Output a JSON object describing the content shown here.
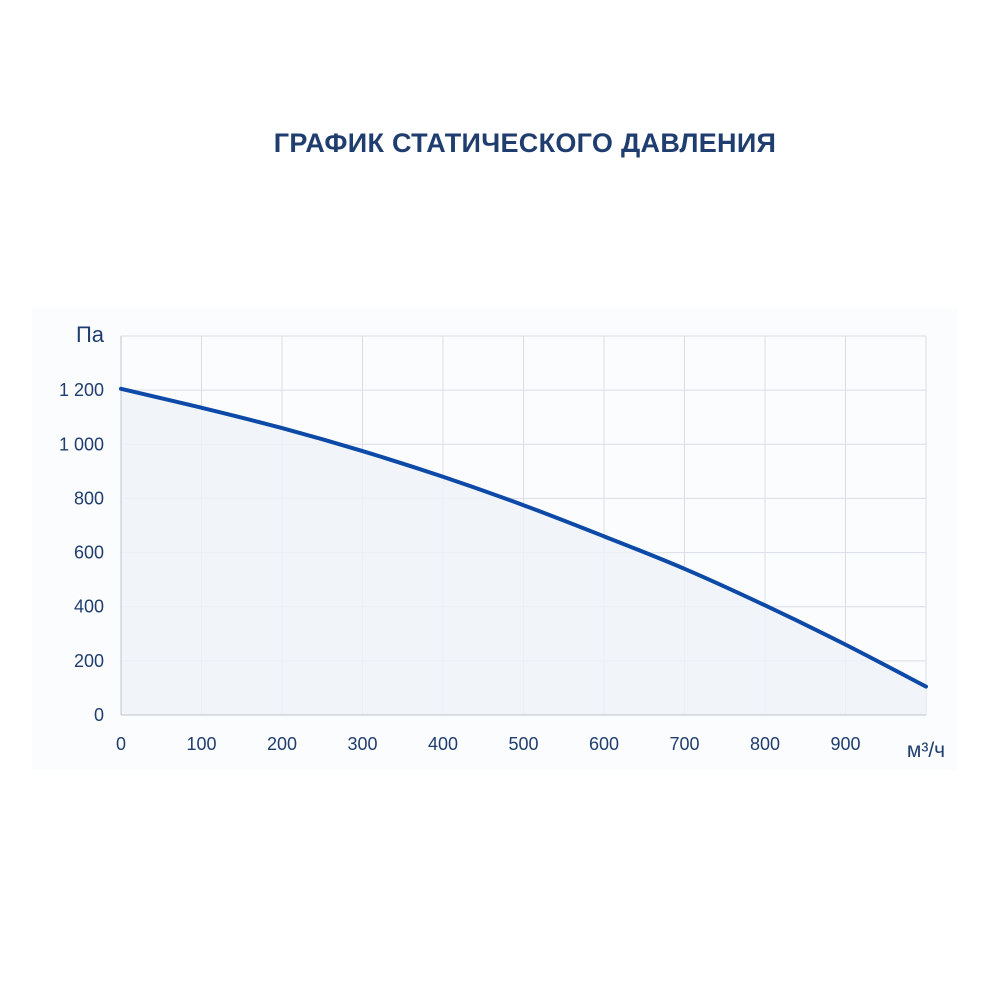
{
  "chart_data": {
    "type": "area",
    "title": "ГРАФИК СТАТИЧЕСКОГО ДАВЛЕНИЯ",
    "xlabel": "м³/ч",
    "ylabel": "Па",
    "xlim": [
      0,
      1000
    ],
    "ylim": [
      0,
      1400
    ],
    "x_ticks": [
      0,
      100,
      200,
      300,
      400,
      500,
      600,
      700,
      800,
      900
    ],
    "x_tick_labels": [
      "0",
      "100",
      "200",
      "300",
      "400",
      "500",
      "600",
      "700",
      "800",
      "900"
    ],
    "y_ticks": [
      0,
      200,
      400,
      600,
      800,
      1000,
      1200
    ],
    "y_tick_labels": [
      "0",
      "200",
      "400",
      "600",
      "800",
      "1 000",
      "1 200"
    ],
    "grid": true,
    "series": [
      {
        "x": [
          0,
          100,
          200,
          300,
          400,
          500,
          600,
          700,
          800,
          900,
          1000
        ],
        "y": [
          1205,
          1135,
          1060,
          975,
          880,
          775,
          660,
          540,
          405,
          260,
          105
        ]
      }
    ],
    "colors": {
      "line": "#0d4aa8",
      "fill": "#eef2f8",
      "grid": "#d9dee6",
      "axis": "#c9ced6",
      "text": "#1f3d6e"
    }
  }
}
